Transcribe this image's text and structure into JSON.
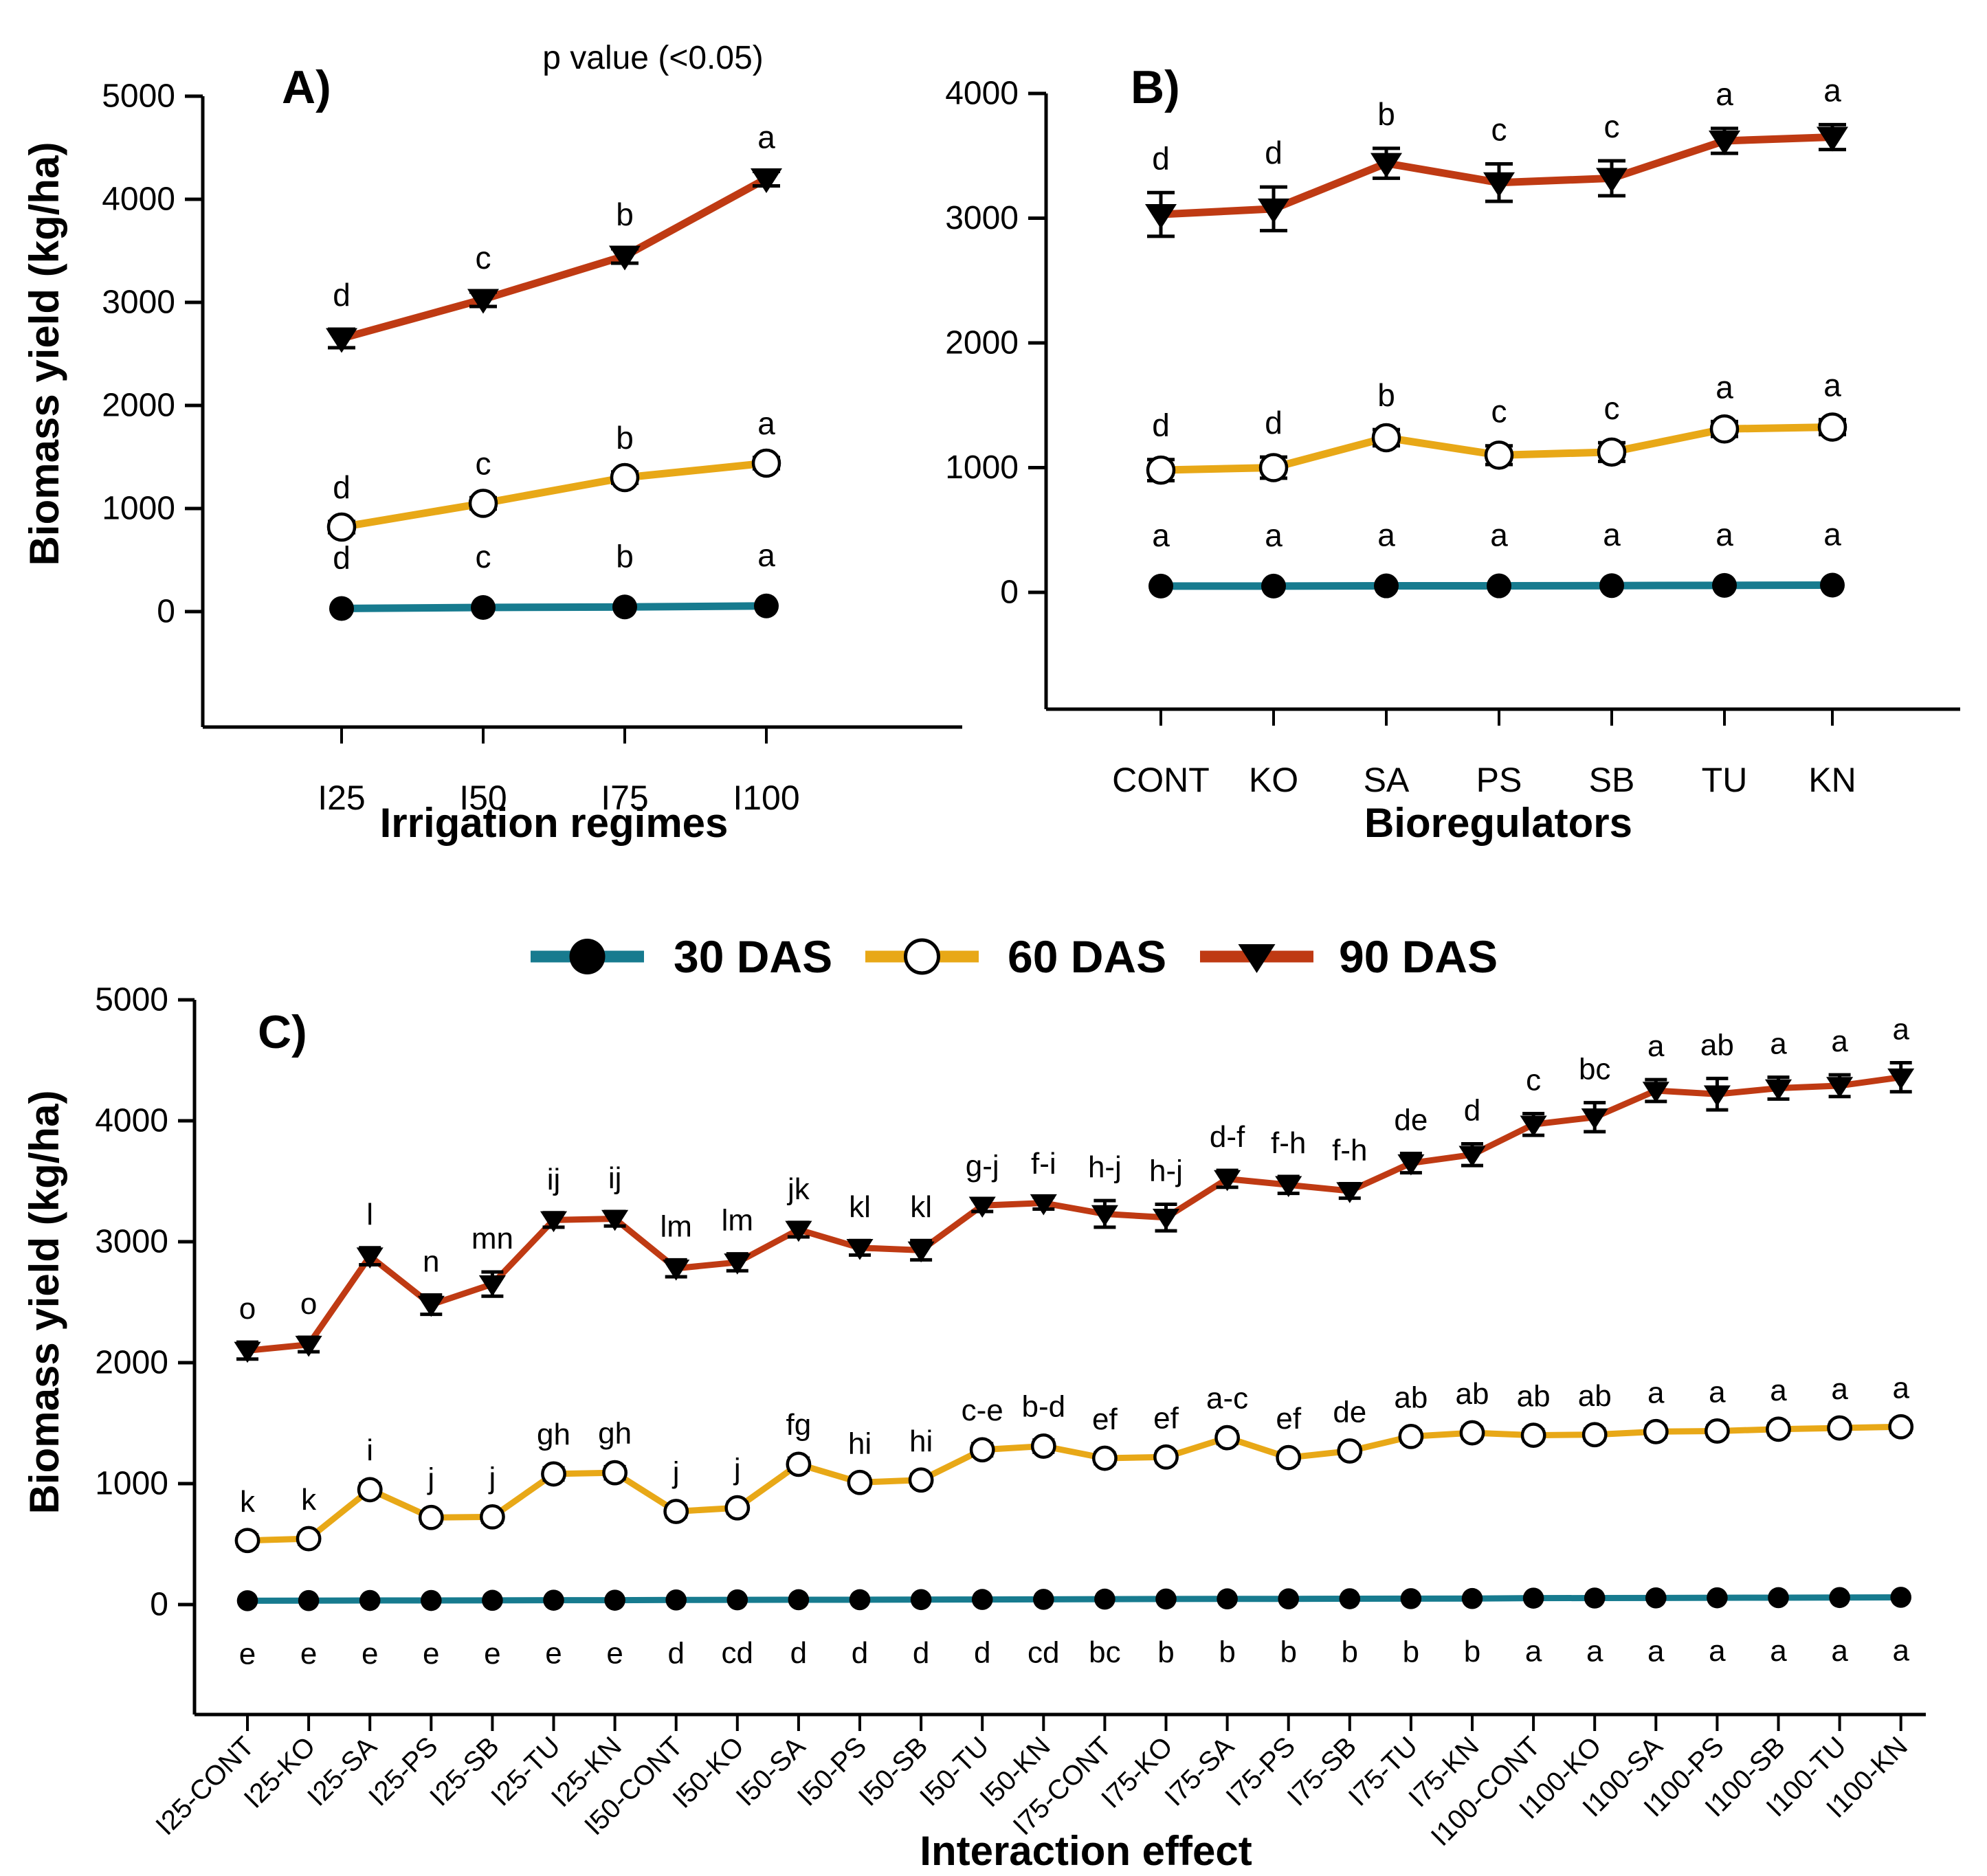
{
  "colors": {
    "teal": "#177b8f",
    "gold": "#e8a817",
    "red": "#bf3a13",
    "black": "#000000",
    "background": "#ffffff"
  },
  "legend": {
    "items": [
      {
        "label": "30 DAS",
        "marker": "filled-circle-icon",
        "color": "teal"
      },
      {
        "label": "60 DAS",
        "marker": "open-circle-icon",
        "color": "gold"
      },
      {
        "label": "90 DAS",
        "marker": "filled-triangle-down-icon",
        "color": "red"
      }
    ]
  },
  "chart_data": [
    {
      "id": "A",
      "type": "line",
      "panel_label": "A)",
      "annotation": "p value (<0.05)",
      "xlabel": "Irrigation regimes",
      "ylabel": "Biomass yield (kg/ha)",
      "categories": [
        "I25",
        "I50",
        "I75",
        "I100"
      ],
      "yticks": [
        0,
        1000,
        2000,
        3000,
        4000,
        5000
      ],
      "ylim": [
        -1000,
        5000
      ],
      "grid": false,
      "legend_position": "none",
      "series": [
        {
          "name": "30 DAS",
          "color": "teal",
          "marker": "filled-circle",
          "letter_pos": "above",
          "values": [
            30,
            40,
            45,
            55
          ],
          "errors": [
            0,
            0,
            0,
            0
          ],
          "letters": [
            "d",
            "c",
            "b",
            "a"
          ]
        },
        {
          "name": "60 DAS",
          "color": "gold",
          "marker": "open-circle",
          "letter_pos": "above",
          "values": [
            820,
            1050,
            1300,
            1440
          ],
          "errors": [
            55,
            55,
            55,
            55
          ],
          "letters": [
            "d",
            "c",
            "b",
            "a"
          ]
        },
        {
          "name": "90 DAS",
          "color": "red",
          "marker": "filled-triangle-down",
          "letter_pos": "above",
          "values": [
            2650,
            3030,
            3450,
            4200
          ],
          "errors": [
            90,
            70,
            70,
            70
          ],
          "letters": [
            "d",
            "c",
            "b",
            "a"
          ]
        }
      ]
    },
    {
      "id": "B",
      "type": "line",
      "panel_label": "B)",
      "annotation": "",
      "xlabel": "Bioregulators",
      "ylabel": "",
      "categories": [
        "CONT",
        "KO",
        "SA",
        "PS",
        "SB",
        "TU",
        "KN"
      ],
      "yticks": [
        0,
        1000,
        2000,
        3000,
        4000
      ],
      "ylim": [
        -950,
        4000
      ],
      "grid": false,
      "legend_position": "none",
      "series": [
        {
          "name": "30 DAS",
          "color": "teal",
          "marker": "filled-circle",
          "letter_pos": "above",
          "values": [
            50,
            50,
            52,
            52,
            54,
            56,
            58
          ],
          "errors": [
            0,
            0,
            0,
            0,
            0,
            0,
            0
          ],
          "letters": [
            "a",
            "a",
            "a",
            "a",
            "a",
            "a",
            "a"
          ]
        },
        {
          "name": "60 DAS",
          "color": "gold",
          "marker": "open-circle",
          "letter_pos": "above",
          "values": [
            980,
            1000,
            1240,
            1100,
            1125,
            1310,
            1325
          ],
          "errors": [
            85,
            85,
            65,
            75,
            75,
            60,
            60
          ],
          "letters": [
            "d",
            "d",
            "b",
            "c",
            "c",
            "a",
            "a"
          ]
        },
        {
          "name": "90 DAS",
          "color": "red",
          "marker": "filled-triangle-down",
          "letter_pos": "above",
          "values": [
            3030,
            3075,
            3440,
            3285,
            3320,
            3620,
            3650
          ],
          "errors": [
            175,
            175,
            120,
            150,
            140,
            100,
            100
          ],
          "letters": [
            "d",
            "d",
            "b",
            "c",
            "c",
            "a",
            "a"
          ]
        }
      ]
    },
    {
      "id": "C",
      "type": "line",
      "panel_label": "C)",
      "annotation": "",
      "xlabel": "Interaction effect",
      "ylabel": "Biomass yield (kg/ha)",
      "categories": [
        "I25-CONT",
        "I25-KO",
        "I25-SA",
        "I25-PS",
        "I25-SB",
        "I25-TU",
        "I25-KN",
        "I50-CONT",
        "I50-KO",
        "I50-SA",
        "I50-PS",
        "I50-SB",
        "I50-TU",
        "I50-KN",
        "I75-CONT",
        "I75-KO",
        "I75-SA",
        "I75-PS",
        "I75-SB",
        "I75-TU",
        "I75-KN",
        "I100-CONT",
        "I100-KO",
        "I100-SA",
        "I100-PS",
        "I100-SB",
        "I100-TU",
        "I100-KN"
      ],
      "yticks": [
        0,
        1000,
        2000,
        3000,
        4000,
        5000
      ],
      "ylim": [
        -900,
        5000
      ],
      "grid": false,
      "legend_position": "top-center",
      "series": [
        {
          "name": "30 DAS",
          "color": "teal",
          "marker": "filled-circle",
          "letter_pos": "below",
          "values": [
            32,
            33,
            34,
            34,
            35,
            36,
            36,
            38,
            39,
            40,
            40,
            41,
            42,
            43,
            45,
            46,
            47,
            47,
            48,
            49,
            50,
            53,
            54,
            55,
            56,
            57,
            58,
            60
          ],
          "errors": [
            0,
            0,
            0,
            0,
            0,
            0,
            0,
            0,
            0,
            0,
            0,
            0,
            0,
            0,
            0,
            0,
            0,
            0,
            0,
            0,
            0,
            0,
            0,
            0,
            0,
            0,
            0,
            0
          ],
          "letters": [
            "e",
            "e",
            "e",
            "e",
            "e",
            "e",
            "e",
            "d",
            "cd",
            "d",
            "d",
            "d",
            "d",
            "cd",
            "bc",
            "b",
            "b",
            "b",
            "b",
            "b",
            "b",
            "a",
            "a",
            "a",
            "a",
            "a",
            "a",
            "a"
          ]
        },
        {
          "name": "60 DAS",
          "color": "gold",
          "marker": "open-circle",
          "letter_pos": "above",
          "values": [
            530,
            545,
            950,
            720,
            725,
            1080,
            1090,
            770,
            800,
            1160,
            1010,
            1030,
            1280,
            1310,
            1210,
            1220,
            1380,
            1215,
            1270,
            1390,
            1420,
            1400,
            1405,
            1430,
            1435,
            1450,
            1460,
            1470
          ],
          "errors": [
            45,
            45,
            50,
            45,
            45,
            50,
            50,
            45,
            45,
            50,
            45,
            45,
            50,
            50,
            45,
            45,
            50,
            45,
            45,
            45,
            45,
            45,
            45,
            45,
            45,
            45,
            45,
            45
          ],
          "letters": [
            "k",
            "k",
            "i",
            "j",
            "j",
            "gh",
            "gh",
            "j",
            "j",
            "fg",
            "hi",
            "hi",
            "c-e",
            "b-d",
            "ef",
            "ef",
            "a-c",
            "ef",
            "de",
            "ab",
            "ab",
            "ab",
            "ab",
            "a",
            "a",
            "a",
            "a",
            "a"
          ]
        },
        {
          "name": "90 DAS",
          "color": "red",
          "marker": "filled-triangle-down",
          "letter_pos": "above",
          "values": [
            2100,
            2150,
            2880,
            2480,
            2650,
            3180,
            3190,
            2780,
            2830,
            3100,
            2950,
            2930,
            3300,
            3320,
            3230,
            3200,
            3520,
            3470,
            3420,
            3650,
            3720,
            3970,
            4030,
            4250,
            4220,
            4270,
            4290,
            4360
          ],
          "errors": [
            70,
            60,
            70,
            80,
            100,
            60,
            60,
            70,
            70,
            60,
            60,
            80,
            50,
            50,
            110,
            110,
            70,
            70,
            60,
            80,
            90,
            90,
            120,
            90,
            130,
            90,
            90,
            120
          ],
          "letters": [
            "o",
            "o",
            "l",
            "n",
            "mn",
            "ij",
            "ij",
            "lm",
            "lm",
            "jk",
            "kl",
            "kl",
            "g-j",
            "f-i",
            "h-j",
            "h-j",
            "d-f",
            "f-h",
            "f-h",
            "de",
            "d",
            "c",
            "bc",
            "a",
            "ab",
            "a",
            "a",
            "a"
          ]
        }
      ]
    }
  ]
}
